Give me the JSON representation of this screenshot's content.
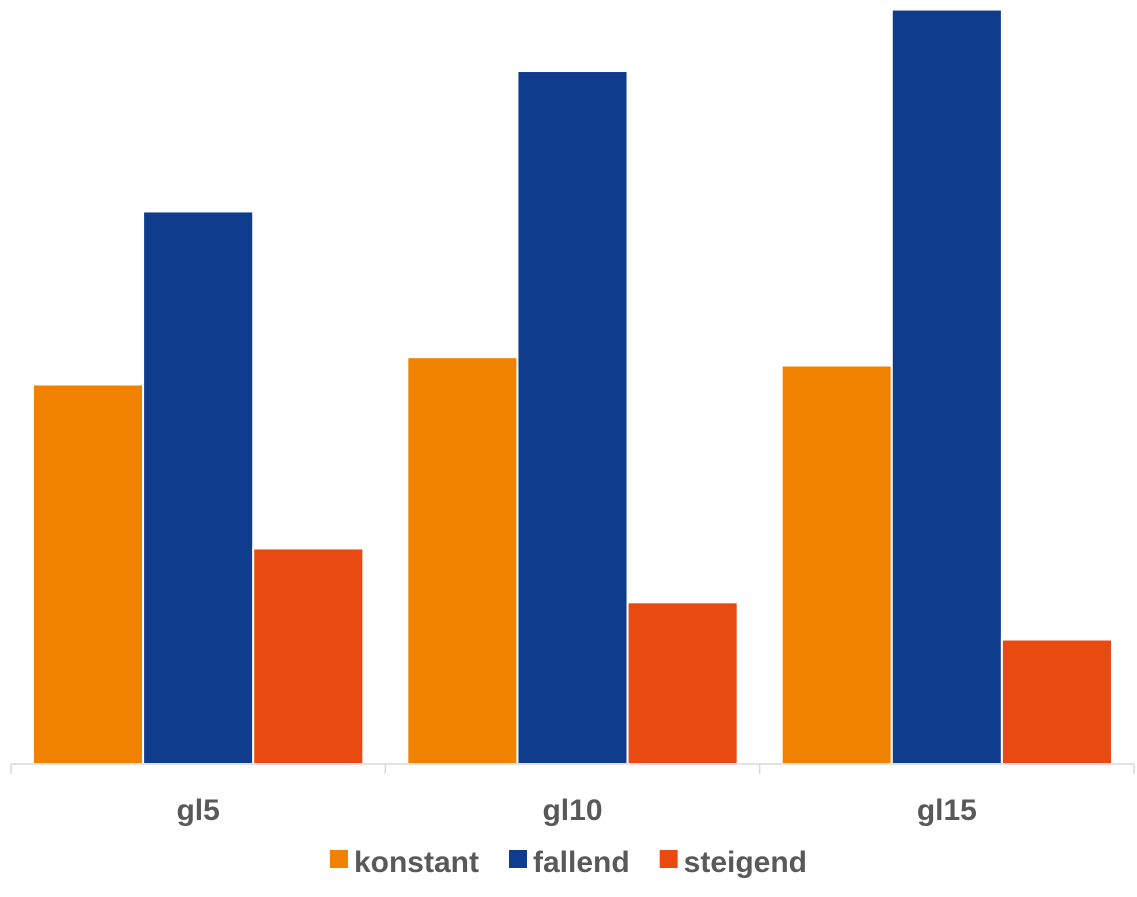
{
  "chart_data": {
    "type": "bar",
    "title": "",
    "xlabel": "",
    "ylabel": "",
    "categories": [
      "gl5",
      "gl10",
      "gl15"
    ],
    "series": [
      {
        "name": "konstant",
        "values": [
          50.0,
          53.6,
          52.5
        ],
        "color": "#F08200"
      },
      {
        "name": "fallend",
        "values": [
          72.8,
          91.3,
          99.4
        ],
        "color": "#0F3C8C"
      },
      {
        "name": "steigend",
        "values": [
          28.4,
          21.3,
          16.4
        ],
        "color": "#E84A12"
      }
    ],
    "ylim": [
      0,
      100
    ],
    "grid": false,
    "legend_position": "bottom"
  }
}
